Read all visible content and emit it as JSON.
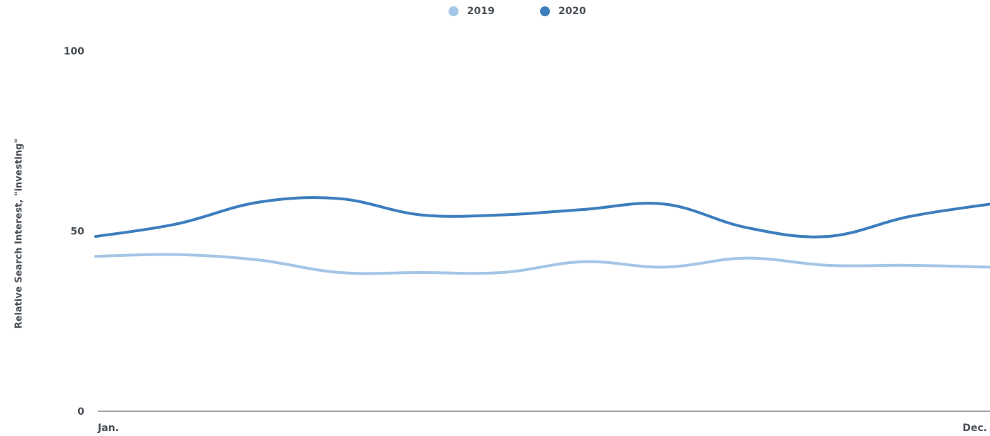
{
  "chart_data": {
    "type": "line",
    "title": "",
    "xlabel": "",
    "ylabel": "Relative Search Interest, \"investing\"",
    "ylim": [
      0,
      100
    ],
    "yticks": [
      "0",
      "50",
      "100"
    ],
    "xtick_labels": {
      "first": "Jan.",
      "last": "Dec."
    },
    "grid": false,
    "legend_position": "top-center",
    "x": [
      0,
      1,
      2,
      3,
      4,
      5,
      6,
      7,
      8,
      9,
      10,
      11
    ],
    "series": [
      {
        "name": "2019",
        "color": "#a3c6e6",
        "values": [
          43,
          43.5,
          42,
          38.5,
          38.5,
          38.5,
          41.5,
          40,
          42.5,
          40.5,
          40.5,
          40
        ]
      },
      {
        "name": "2020",
        "color": "#3d7ebe",
        "values": [
          48.5,
          52,
          58,
          59,
          54.5,
          54.5,
          56,
          57.5,
          51,
          48.5,
          54,
          57.5
        ]
      }
    ]
  }
}
